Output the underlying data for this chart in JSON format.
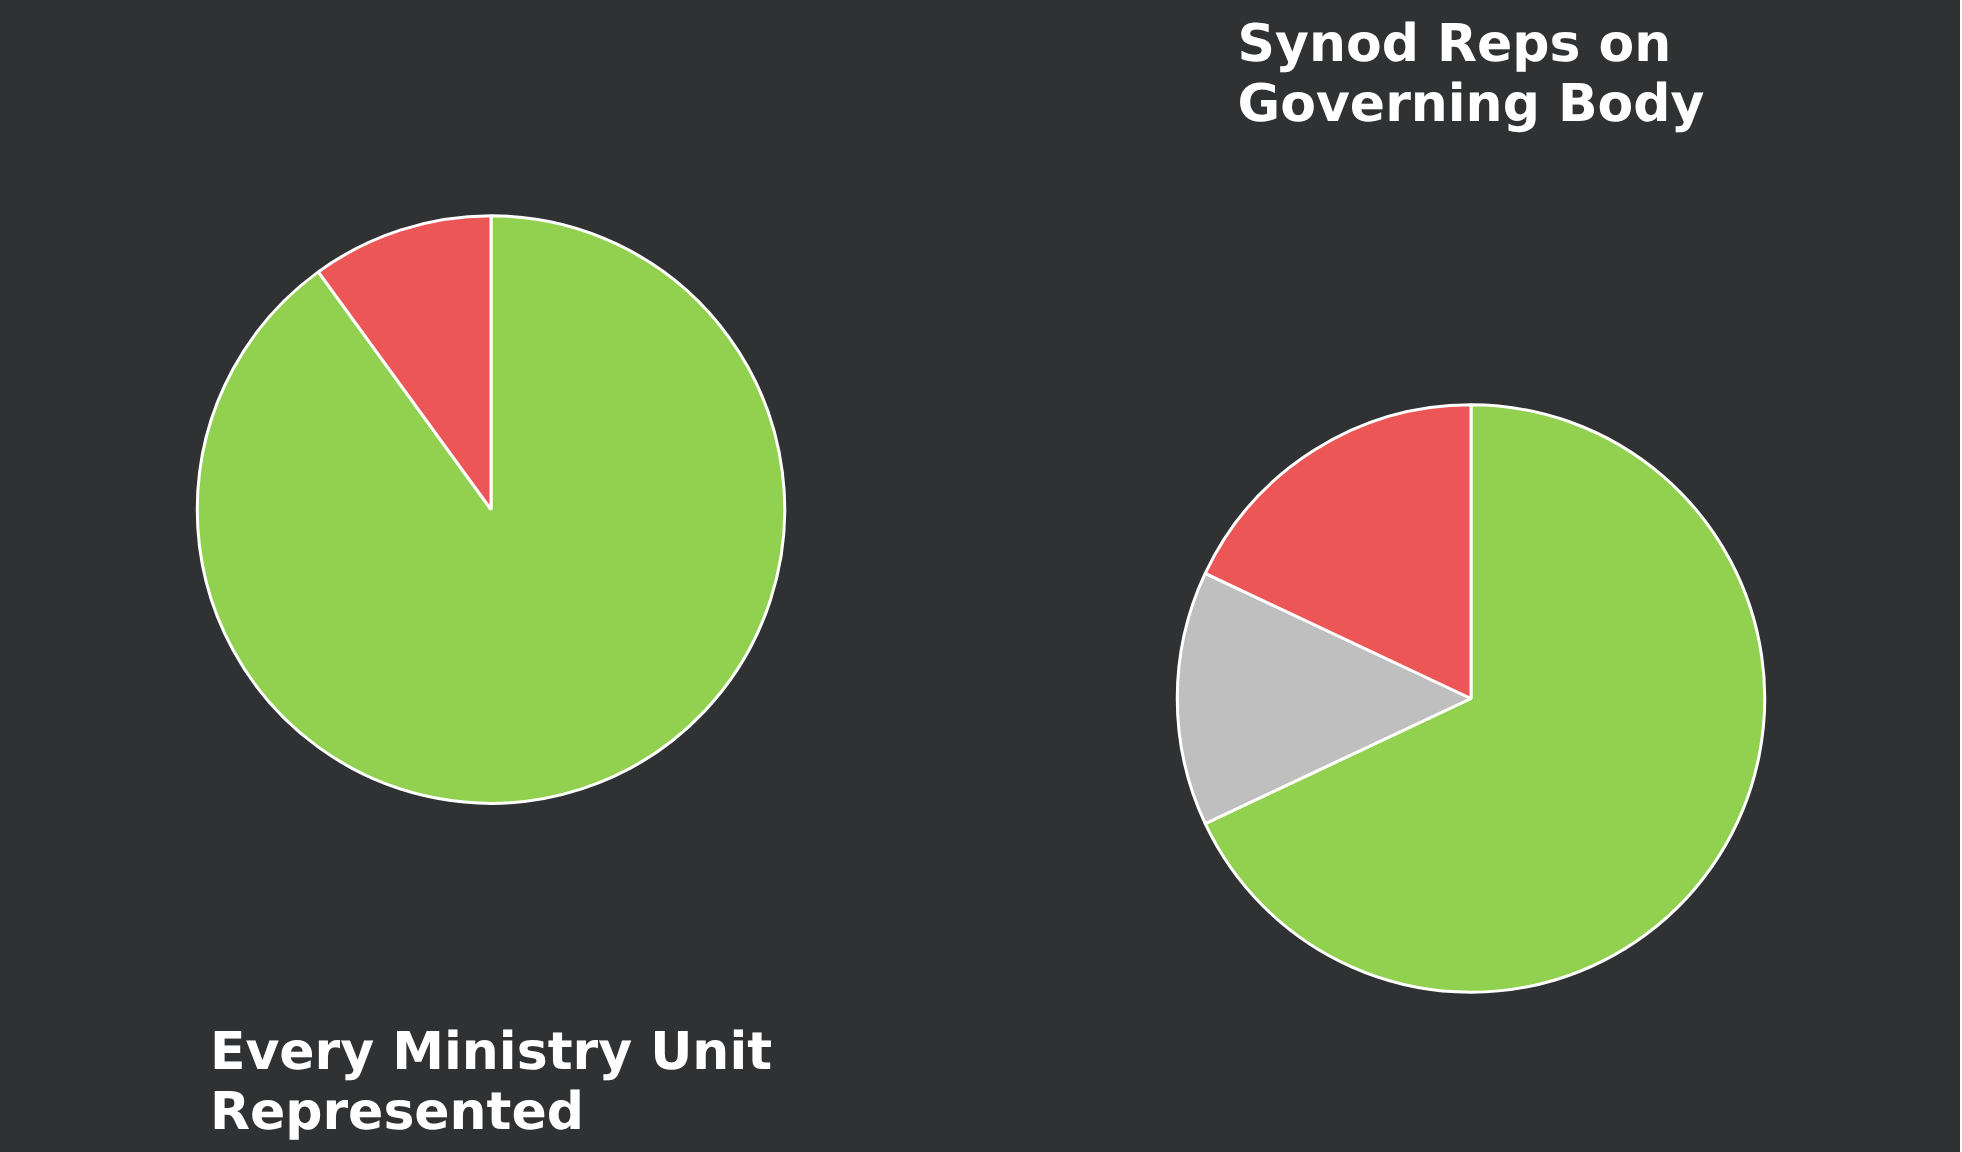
{
  "chart_data": [
    {
      "type": "pie",
      "title": "Every Ministry Unit Represented",
      "categories": [
        null,
        null
      ],
      "values": [
        90,
        10
      ],
      "colors": [
        "#92d050",
        "#ec5656"
      ]
    },
    {
      "type": "pie",
      "title": "Synod Reps on Governing Body",
      "categories": [
        null,
        null,
        null
      ],
      "values": [
        68,
        14,
        18
      ],
      "colors": [
        "#92d050",
        "#bfbfbf",
        "#ec5656"
      ]
    }
  ]
}
